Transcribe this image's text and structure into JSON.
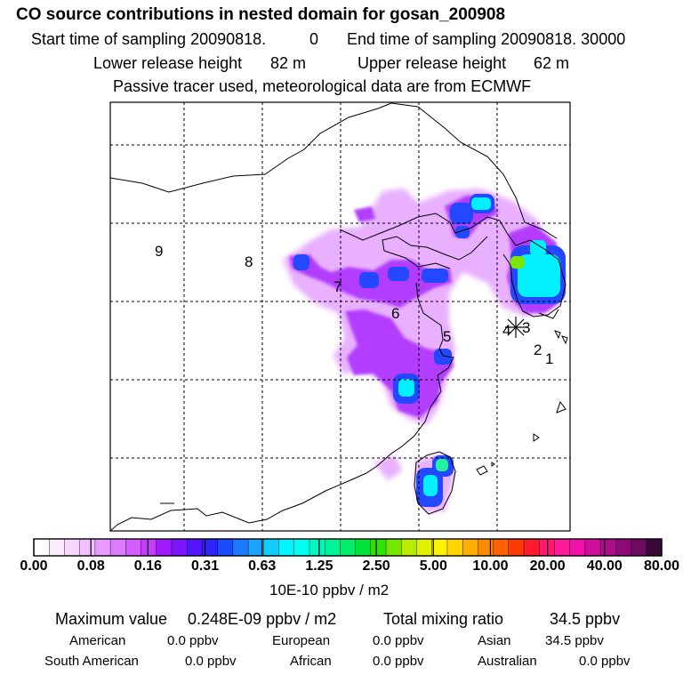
{
  "header": {
    "title": "CO  source contributions in nested domain for gosan_200908",
    "start_label": "Start time of sampling 20090818.",
    "start_value": "0",
    "end_label": "End time of sampling 20090818. 30000",
    "lower_label": "Lower release height",
    "lower_value": "82 m",
    "upper_label": "Upper release height",
    "upper_value": "62 m",
    "tracer_note": "Passive tracer used, meteorological data are from ECMWF"
  },
  "map": {
    "region_labels": [
      "9",
      "8",
      "7",
      "6",
      "5",
      "4",
      "3",
      "2",
      "1"
    ],
    "receptor_marker": "star-icon"
  },
  "colorbar": {
    "tick_labels": [
      "0.00",
      "0.08",
      "0.16",
      "0.31",
      "0.63",
      "1.25",
      "2.50",
      "5.00",
      "10.00",
      "20.00",
      "40.00",
      "80.00"
    ],
    "unit": "10E-10 ppbv / m2",
    "colors": [
      "#ffffff",
      "#fbeaff",
      "#f6d6ff",
      "#f1c2ff",
      "#e79aff",
      "#de7cff",
      "#d45cff",
      "#c63bff",
      "#a21bff",
      "#7b17ff",
      "#5215ff",
      "#2d24ff",
      "#1a4cff",
      "#1b79ff",
      "#1aa4ff",
      "#11ccff",
      "#00f5ff",
      "#00ffee",
      "#00f7c2",
      "#00f596",
      "#00ee6a",
      "#00e23a",
      "#2ee200",
      "#74e600",
      "#b7ec00",
      "#e1f000",
      "#fff200",
      "#ffd400",
      "#ffae00",
      "#ff8a00",
      "#ff6200",
      "#ff3a00",
      "#ff1a2e",
      "#ff1a6a",
      "#ff1a9c",
      "#f012a8",
      "#d00e9c",
      "#ad0c8a",
      "#8c0a76",
      "#6e0a62",
      "#3a0836"
    ]
  },
  "summary": {
    "max_label": "Maximum value",
    "max_value": "0.248E-09 ppbv / m2",
    "total_label": "Total mixing ratio",
    "total_value": "34.5 ppbv",
    "american_label": "American",
    "american_value": "0.0 ppbv",
    "european_label": "European",
    "european_value": "0.0 ppbv",
    "asian_label": "Asian",
    "asian_value": "34.5 ppbv",
    "south_american_label": "South American",
    "south_american_value": "0.0 ppbv",
    "african_label": "African",
    "african_value": "0.0 ppbv",
    "australian_label": "Australian",
    "australian_value": "0.0 ppbv"
  }
}
